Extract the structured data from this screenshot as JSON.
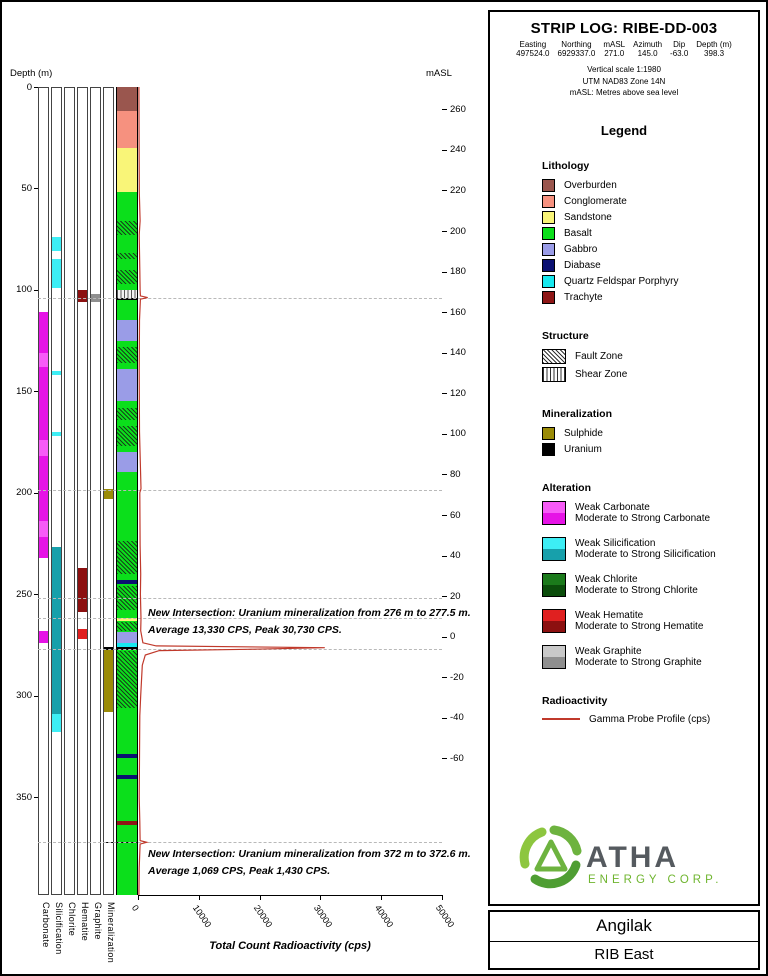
{
  "titleblock": {
    "title": "STRIP LOG: RIBE-DD-003",
    "fields": [
      {
        "label": "Easting",
        "value": "497524.0"
      },
      {
        "label": "Northing",
        "value": "6929337.0"
      },
      {
        "label": "mASL",
        "value": "271.0"
      },
      {
        "label": "Azimuth",
        "value": "145.0"
      },
      {
        "label": "Dip",
        "value": "-63.0"
      },
      {
        "label": "Depth (m)",
        "value": "398.3"
      }
    ],
    "notes": [
      "Vertical scale 1:1980",
      "UTM NAD83 Zone 14N",
      "mASL: Metres above sea level"
    ]
  },
  "legend": {
    "title": "Legend",
    "sections": [
      {
        "name": "Lithology",
        "type": "swatch",
        "items": [
          {
            "label": "Overburden",
            "color": "#9a564e"
          },
          {
            "label": "Conglomerate",
            "color": "#f6917f"
          },
          {
            "label": "Sandstone",
            "color": "#f9f578"
          },
          {
            "label": "Basalt",
            "color": "#0bdf1b"
          },
          {
            "label": "Gabbro",
            "color": "#9a9ce7"
          },
          {
            "label": "Diabase",
            "color": "#0b1172"
          },
          {
            "label": "Quartz Feldspar Porphyry",
            "color": "#16e8ef"
          },
          {
            "label": "Trachyte",
            "color": "#8e1616"
          }
        ]
      },
      {
        "name": "Structure",
        "type": "pattern",
        "items": [
          {
            "label": "Fault Zone",
            "pattern": "fault"
          },
          {
            "label": "Shear Zone",
            "pattern": "shear"
          }
        ]
      },
      {
        "name": "Mineralization",
        "type": "swatch",
        "items": [
          {
            "label": "Sulphide",
            "color": "#9a8b07"
          },
          {
            "label": "Uranium",
            "color": "#000000"
          }
        ]
      },
      {
        "name": "Alteration",
        "type": "dual",
        "items": [
          {
            "weak": "Weak Carbonate",
            "strong": "Moderate to Strong Carbonate",
            "weak_color": "#f75bf7",
            "strong_color": "#e613e6"
          },
          {
            "weak": "Weak Silicification",
            "strong": "Moderate to Strong Silicification",
            "weak_color": "#3deef5",
            "strong_color": "#17a0ab"
          },
          {
            "weak": "Weak Chlorite",
            "strong": "Moderate to Strong Chlorite",
            "weak_color": "#1b7a1b",
            "strong_color": "#0b4d0b"
          },
          {
            "weak": "Weak Hematite",
            "strong": "Moderate to Strong Hematite",
            "weak_color": "#e02020",
            "strong_color": "#8c1010"
          },
          {
            "weak": "Weak Graphite",
            "strong": "Moderate to Strong Graphite",
            "weak_color": "#c9c9c9",
            "strong_color": "#8f8f8f"
          }
        ]
      },
      {
        "name": "Radioactivity",
        "type": "line",
        "items": [
          {
            "label": "Gamma Probe Profile (cps)",
            "color": "#c0392b"
          }
        ]
      }
    ]
  },
  "logo": {
    "name": "ATHA",
    "sub": "ENERGY CORP.",
    "green": "#6fb52f",
    "dark": "#555a5f"
  },
  "footer": {
    "project": "Angilak",
    "area": "RIB East"
  },
  "chart_data": {
    "type": "strip-log",
    "depth_axis": {
      "label": "Depth (m)",
      "min": 0,
      "max": 398.3,
      "ticks": [
        0,
        50,
        100,
        150,
        200,
        250,
        300,
        350
      ]
    },
    "masl_axis": {
      "label": "mASL",
      "surface_masl": 271.0,
      "ticks": [
        260,
        240,
        220,
        200,
        180,
        160,
        140,
        120,
        100,
        80,
        60,
        40,
        20,
        0,
        -20,
        -40,
        -60
      ]
    },
    "cps_axis": {
      "label": "Total Count Radioactivity (cps)",
      "min": 0,
      "max": 50000,
      "ticks": [
        0,
        10000,
        20000,
        30000,
        40000,
        50000
      ]
    },
    "track_names": [
      "Carbonate",
      "Silicification",
      "Chlorite",
      "Hematite",
      "Graphite",
      "Mineralization"
    ],
    "lithology": [
      {
        "from": 0,
        "to": 12,
        "unit": "Overburden"
      },
      {
        "from": 12,
        "to": 30,
        "unit": "Conglomerate"
      },
      {
        "from": 30,
        "to": 52,
        "unit": "Sandstone"
      },
      {
        "from": 52,
        "to": 104,
        "unit": "Basalt"
      },
      {
        "from": 104,
        "to": 105.2,
        "unit": "Uranium"
      },
      {
        "from": 105.2,
        "to": 115,
        "unit": "Basalt"
      },
      {
        "from": 115,
        "to": 125,
        "unit": "Gabbro"
      },
      {
        "from": 125,
        "to": 139,
        "unit": "Basalt"
      },
      {
        "from": 139,
        "to": 155,
        "unit": "Gabbro"
      },
      {
        "from": 155,
        "to": 180,
        "unit": "Basalt"
      },
      {
        "from": 180,
        "to": 190,
        "unit": "Gabbro"
      },
      {
        "from": 190,
        "to": 243,
        "unit": "Basalt"
      },
      {
        "from": 243,
        "to": 245,
        "unit": "Diabase"
      },
      {
        "from": 245,
        "to": 262,
        "unit": "Basalt"
      },
      {
        "from": 262,
        "to": 263,
        "unit": "Sandstone"
      },
      {
        "from": 263,
        "to": 268.5,
        "unit": "Basalt"
      },
      {
        "from": 268.5,
        "to": 274,
        "unit": "Gabbro"
      },
      {
        "from": 274,
        "to": 276,
        "unit": "Quartz Feldspar Porphyry"
      },
      {
        "from": 276,
        "to": 277.5,
        "unit": "Uranium"
      },
      {
        "from": 277.5,
        "to": 329,
        "unit": "Basalt"
      },
      {
        "from": 329,
        "to": 331,
        "unit": "Diabase"
      },
      {
        "from": 331,
        "to": 339,
        "unit": "Basalt"
      },
      {
        "from": 339,
        "to": 341,
        "unit": "Diabase"
      },
      {
        "from": 341,
        "to": 362,
        "unit": "Basalt"
      },
      {
        "from": 362,
        "to": 364,
        "unit": "Trachyte"
      },
      {
        "from": 364,
        "to": 372,
        "unit": "Basalt"
      },
      {
        "from": 372,
        "to": 372.6,
        "unit": "Uranium"
      },
      {
        "from": 372.6,
        "to": 398.3,
        "unit": "Basalt"
      }
    ],
    "structure_zones": [
      {
        "from": 66,
        "to": 73,
        "type": "Fault Zone"
      },
      {
        "from": 82,
        "to": 85,
        "type": "Fault Zone"
      },
      {
        "from": 90,
        "to": 97,
        "type": "Fault Zone"
      },
      {
        "from": 100,
        "to": 104,
        "type": "Shear Zone"
      },
      {
        "from": 128,
        "to": 136,
        "type": "Fault Zone"
      },
      {
        "from": 158,
        "to": 164,
        "type": "Fault Zone"
      },
      {
        "from": 167,
        "to": 177,
        "type": "Fault Zone"
      },
      {
        "from": 224,
        "to": 240,
        "type": "Fault Zone"
      },
      {
        "from": 246,
        "to": 258,
        "type": "Fault Zone"
      },
      {
        "from": 263.5,
        "to": 268,
        "type": "Fault Zone"
      },
      {
        "from": 278,
        "to": 306,
        "type": "Fault Zone"
      }
    ],
    "alteration_tracks": {
      "Carbonate": [
        {
          "from": 111,
          "to": 131,
          "grade": "strong"
        },
        {
          "from": 131,
          "to": 138,
          "grade": "weak"
        },
        {
          "from": 138,
          "to": 174,
          "grade": "strong"
        },
        {
          "from": 174,
          "to": 182,
          "grade": "weak"
        },
        {
          "from": 182,
          "to": 214,
          "grade": "strong"
        },
        {
          "from": 214,
          "to": 222,
          "grade": "weak"
        },
        {
          "from": 222,
          "to": 232,
          "grade": "strong"
        },
        {
          "from": 268,
          "to": 274,
          "grade": "strong"
        }
      ],
      "Silicification": [
        {
          "from": 74,
          "to": 81,
          "grade": "weak"
        },
        {
          "from": 85,
          "to": 99,
          "grade": "weak"
        },
        {
          "from": 140,
          "to": 142,
          "grade": "weak"
        },
        {
          "from": 170,
          "to": 172,
          "grade": "weak"
        },
        {
          "from": 227,
          "to": 309,
          "grade": "strong"
        },
        {
          "from": 309,
          "to": 318,
          "grade": "weak"
        }
      ],
      "Chlorite": [],
      "Hematite": [
        {
          "from": 100,
          "to": 106,
          "grade": "strong"
        },
        {
          "from": 237,
          "to": 259,
          "grade": "strong"
        },
        {
          "from": 267,
          "to": 272,
          "grade": "weak"
        }
      ],
      "Graphite": [
        {
          "from": 102,
          "to": 106,
          "grade": "strong"
        }
      ]
    },
    "mineralization_track": [
      {
        "from": 198,
        "to": 203,
        "type": "Sulphide"
      },
      {
        "from": 276,
        "to": 277.5,
        "type": "Uranium"
      },
      {
        "from": 277.5,
        "to": 308,
        "type": "Sulphide"
      },
      {
        "from": 372,
        "to": 372.6,
        "type": "Uranium"
      }
    ],
    "marker_depths": [
      104,
      198.5,
      252,
      262,
      277,
      372.3
    ],
    "gamma_profile": [
      [
        0,
        150
      ],
      [
        30,
        180
      ],
      [
        52,
        220
      ],
      [
        66,
        350
      ],
      [
        73,
        200
      ],
      [
        90,
        300
      ],
      [
        100,
        350
      ],
      [
        103,
        400
      ],
      [
        103.8,
        1600
      ],
      [
        104.6,
        400
      ],
      [
        115,
        250
      ],
      [
        140,
        200
      ],
      [
        170,
        250
      ],
      [
        198,
        500
      ],
      [
        200,
        300
      ],
      [
        226,
        350
      ],
      [
        240,
        450
      ],
      [
        250,
        400
      ],
      [
        262,
        500
      ],
      [
        268,
        450
      ],
      [
        274,
        800
      ],
      [
        275.5,
        3000
      ],
      [
        276.4,
        30730
      ],
      [
        277.2,
        18000
      ],
      [
        277.8,
        3500
      ],
      [
        280,
        1200
      ],
      [
        285,
        700
      ],
      [
        300,
        450
      ],
      [
        310,
        300
      ],
      [
        330,
        250
      ],
      [
        350,
        200
      ],
      [
        362,
        300
      ],
      [
        371.5,
        350
      ],
      [
        372.3,
        1430
      ],
      [
        373.2,
        350
      ],
      [
        385,
        200
      ],
      [
        398.3,
        150
      ]
    ],
    "annotations": [
      {
        "depth": 276,
        "text": "New Intersection: Uranium mineralization from 276 m to 277.5 m. Average 13,330 CPS, Peak 30,730 CPS."
      },
      {
        "depth": 372.3,
        "text": "New Intersection: Uranium mineralization from 372 m to 372.6 m. Average 1,069 CPS, Peak 1,430 CPS."
      }
    ]
  }
}
